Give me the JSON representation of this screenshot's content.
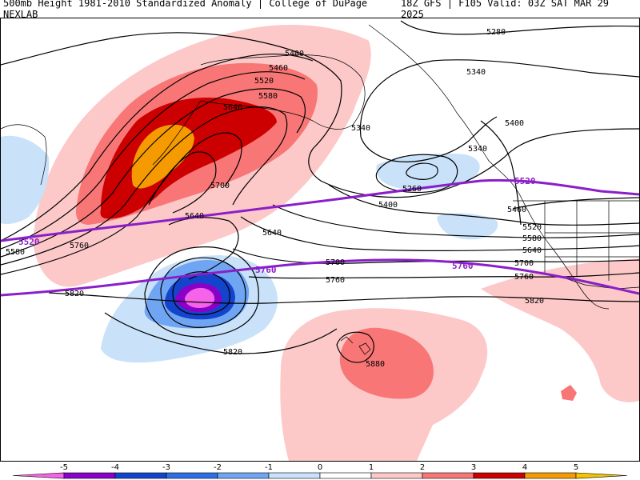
{
  "header": {
    "title": "500mb Height 1981-2010 Standardized Anomaly | College of DuPage NEXLAB",
    "run_info": "18Z GFS | F105 Valid: 03Z SAT MAR 29 2025"
  },
  "colors": {
    "anom_pos1": "#fcc8c8",
    "anom_pos2": "#f87676",
    "anom_pos3": "#cc0000",
    "anom_pos4": "#f59a00",
    "anom_neg1": "#c9e2f9",
    "anom_neg2": "#6fa5f3",
    "anom_neg3": "#1444cc",
    "anom_neg4": "#8a00c8",
    "anom_neg5": "#f563e8",
    "highlight_contour": "#8a1fc9",
    "height_contour": "#000000"
  },
  "contour_labels": [
    {
      "id": "5400-north",
      "text": "5400"
    },
    {
      "id": "5460-north",
      "text": "5460"
    },
    {
      "id": "5520-north",
      "text": "5520"
    },
    {
      "id": "5580-north",
      "text": "5580"
    },
    {
      "id": "5640-north",
      "text": "5640"
    },
    {
      "id": "5700-west",
      "text": "5700"
    },
    {
      "id": "5640-mid",
      "text": "5640"
    },
    {
      "id": "5640-south",
      "text": "5640"
    },
    {
      "id": "5280-ne",
      "text": "5280"
    },
    {
      "id": "5340-ne",
      "text": "5340"
    },
    {
      "id": "5340-low",
      "text": "5340"
    },
    {
      "id": "5340-coast",
      "text": "5340"
    },
    {
      "id": "5400-east",
      "text": "5400"
    },
    {
      "id": "5260-low",
      "text": "5260"
    },
    {
      "id": "5400-low",
      "text": "5400"
    },
    {
      "id": "5460-east",
      "text": "5460"
    },
    {
      "id": "5520-east",
      "text": "5520"
    },
    {
      "id": "5580-east",
      "text": "5580"
    },
    {
      "id": "5640-east",
      "text": "5640"
    },
    {
      "id": "5700-east",
      "text": "5700"
    },
    {
      "id": "5760-east",
      "text": "5760"
    },
    {
      "id": "5820-east",
      "text": "5820"
    },
    {
      "id": "5700-center",
      "text": "5700"
    },
    {
      "id": "5760-center",
      "text": "5760"
    },
    {
      "id": "5760-west",
      "text": "5760"
    },
    {
      "id": "5820-west",
      "text": "5820"
    },
    {
      "id": "5820-south",
      "text": "5820"
    },
    {
      "id": "5580-west",
      "text": "5580"
    },
    {
      "id": "5880-hawaii",
      "text": "5880"
    }
  ],
  "highlight_labels": [
    {
      "id": "5520-purple-west",
      "text": "5520"
    },
    {
      "id": "5520-purple-east",
      "text": "5520"
    },
    {
      "id": "5760-purple-center",
      "text": "5760"
    },
    {
      "id": "5760-purple-east",
      "text": "5760"
    }
  ],
  "colorbar": {
    "ticks": [
      "-5",
      "-4",
      "-3",
      "-2",
      "-1",
      "0",
      "1",
      "2",
      "3",
      "4",
      "5"
    ],
    "colors": [
      "#f563e8",
      "#8a00c8",
      "#1444cc",
      "#2f6fe6",
      "#6fa5f3",
      "#c9e2f9",
      "#ffffff",
      "#fcc8c8",
      "#f87676",
      "#cc0000",
      "#f59a00",
      "#f5c400"
    ]
  }
}
